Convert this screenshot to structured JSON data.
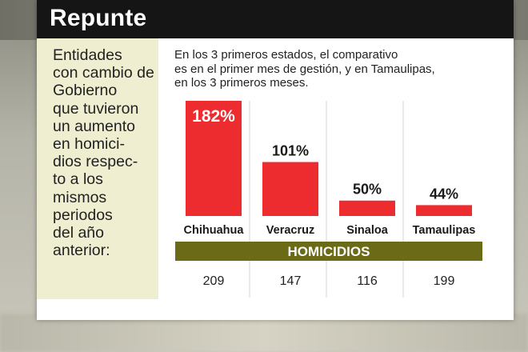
{
  "title": "Repunte",
  "left_text_lines": [
    "Entidades",
    "con cambio de",
    "Gobierno",
    "que tuvieron",
    "un aumento",
    "en homici-",
    "dios respec-",
    "to a los",
    "mismos",
    "periodos",
    "del año",
    "anterior:"
  ],
  "subtitle_lines": [
    "En los 3 primeros estados, el comparativo",
    "es en el primer mes de gestión, y en Tamaulipas,",
    "en los 3 primeros meses."
  ],
  "colors": {
    "bar": "#ec2c2f",
    "band": "#6b6a16",
    "header": "#151515",
    "panel": "#efeed0"
  },
  "chart_data": {
    "type": "bar",
    "categories": [
      "Chihuahua",
      "Veracruz",
      "Sinaloa",
      "Tamaulipas"
    ],
    "values": [
      182,
      101,
      50,
      44
    ],
    "value_labels": [
      "182%",
      "101%",
      "50%",
      "44%"
    ],
    "secondary_label": "HOMICIDIOS",
    "secondary_values": [
      "209",
      "147",
      "116",
      "199"
    ],
    "ylim": [
      0,
      182
    ]
  }
}
